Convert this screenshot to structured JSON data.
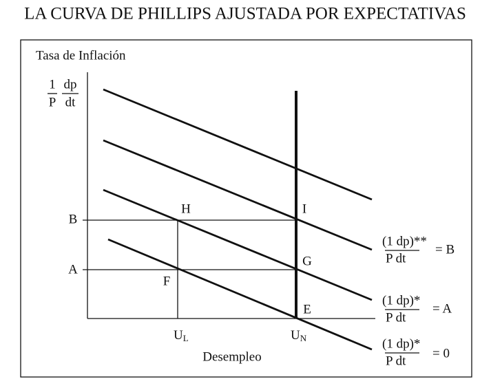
{
  "title": "LA CURVA DE PHILLIPS AJUSTADA POR EXPECTATIVAS",
  "y_axis": {
    "label": "Tasa de Inflación",
    "fraction": {
      "num1": "1",
      "den1": "P",
      "num2": "dp",
      "den2": "dt"
    }
  },
  "x_axis": {
    "label": "Desempleo",
    "ticks": [
      {
        "main": "U",
        "sub": "L"
      },
      {
        "main": "U",
        "sub": "N"
      }
    ]
  },
  "levels": [
    "B",
    "A"
  ],
  "points": [
    "H",
    "I",
    "G",
    "F",
    "E"
  ],
  "curves": [
    {
      "numerator": "(1 dp)**",
      "denominator": "P dt",
      "rhs": "= B"
    },
    {
      "numerator": "(1 dp)*",
      "denominator": "P dt",
      "rhs": "= A"
    },
    {
      "numerator": "(1 dp)*",
      "denominator": "P dt",
      "rhs": "= 0"
    }
  ]
}
